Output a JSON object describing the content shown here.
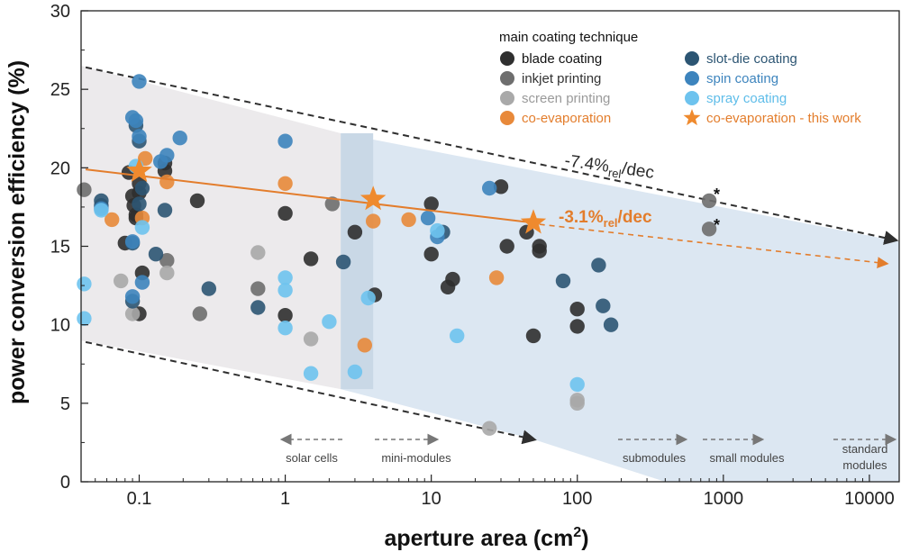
{
  "chart_data": {
    "type": "scatter",
    "title": "",
    "xlabel": "aperture area (cm",
    "xlabel_sup": "2",
    "xlabel_close": ")",
    "ylabel": "power conversion efficiency (%)",
    "xscale": "log",
    "xlim": [
      0.04,
      16000
    ],
    "ylim": [
      0,
      30
    ],
    "x_ticks": [
      0.1,
      1,
      10,
      100,
      1000,
      10000
    ],
    "x_tick_labels": [
      "0.1",
      "1",
      "10",
      "100",
      "1000",
      "10000"
    ],
    "y_ticks": [
      0,
      5,
      10,
      15,
      20,
      25,
      30
    ],
    "y_tick_labels": [
      "0",
      "5",
      "10",
      "15",
      "20",
      "25",
      "30"
    ],
    "grid": false,
    "legend": {
      "title": "main coating technique",
      "placement": "top-right",
      "entries": [
        {
          "key": "blade",
          "label": "blade coating",
          "marker": "circle"
        },
        {
          "key": "inkjet",
          "label": "inkjet printing",
          "marker": "circle"
        },
        {
          "key": "screen",
          "label": "screen printing",
          "marker": "circle"
        },
        {
          "key": "coevap",
          "label": "co-evaporation",
          "marker": "circle"
        },
        {
          "key": "slotdie",
          "label": "slot-die coating",
          "marker": "circle"
        },
        {
          "key": "spin",
          "label": "spin coating",
          "marker": "circle"
        },
        {
          "key": "spray",
          "label": "spray coating",
          "marker": "circle"
        },
        {
          "key": "thiswork",
          "label": "co-evaporation - this work",
          "marker": "star"
        }
      ]
    },
    "colors": {
      "blade": "#2f2f2f",
      "inkjet": "#6e6e6e",
      "screen": "#a9a9a9",
      "coevap": "#e8893a",
      "slotdie": "#2c5573",
      "spin": "#3d84bd",
      "spray": "#6ec3ee",
      "thiswork": "#ef8a2e",
      "envelope": "#2f2f2f",
      "trend": "#e37d2c"
    },
    "series": [
      {
        "key": "blade",
        "points": [
          [
            0.085,
            19.7
          ],
          [
            0.09,
            18.2
          ],
          [
            0.092,
            17.6
          ],
          [
            0.095,
            17.0
          ],
          [
            0.1,
            19.0
          ],
          [
            0.1,
            18.4
          ],
          [
            0.105,
            13.3
          ],
          [
            0.1,
            10.7
          ],
          [
            0.08,
            15.2
          ],
          [
            0.095,
            16.8
          ],
          [
            0.15,
            19.8
          ],
          [
            0.15,
            20.3
          ],
          [
            0.25,
            17.9
          ],
          [
            1.0,
            17.1
          ],
          [
            1.0,
            10.6
          ],
          [
            1.5,
            14.2
          ],
          [
            3.0,
            15.9
          ],
          [
            4.1,
            11.9
          ],
          [
            10.0,
            17.7
          ],
          [
            10.0,
            14.5
          ],
          [
            13.0,
            12.4
          ],
          [
            14.0,
            12.9
          ],
          [
            30.0,
            18.8
          ],
          [
            33.0,
            15.0
          ],
          [
            45.0,
            15.9
          ],
          [
            50.0,
            9.3
          ],
          [
            55.0,
            14.7
          ],
          [
            55.0,
            15.0
          ],
          [
            100.0,
            11.0
          ],
          [
            100.0,
            9.9
          ]
        ]
      },
      {
        "key": "inkjet",
        "points": [
          [
            0.042,
            18.6
          ],
          [
            0.155,
            14.1
          ],
          [
            0.26,
            10.7
          ],
          [
            0.65,
            12.3
          ],
          [
            2.1,
            17.7
          ],
          [
            800.0,
            17.9
          ],
          [
            800.0,
            16.1
          ]
        ]
      },
      {
        "key": "screen",
        "points": [
          [
            0.075,
            12.8
          ],
          [
            0.09,
            10.7
          ],
          [
            0.155,
            13.3
          ],
          [
            0.65,
            14.6
          ],
          [
            1.5,
            9.1
          ],
          [
            25.0,
            3.4
          ],
          [
            100.0,
            5.2
          ],
          [
            100.0,
            5.0
          ]
        ]
      },
      {
        "key": "coevap",
        "points": [
          [
            0.065,
            16.7
          ],
          [
            0.105,
            16.8
          ],
          [
            0.11,
            20.6
          ],
          [
            0.155,
            19.1
          ],
          [
            1.0,
            19.0
          ],
          [
            3.5,
            8.7
          ],
          [
            4.0,
            16.6
          ],
          [
            7.0,
            16.7
          ],
          [
            28.0,
            13.0
          ]
        ]
      },
      {
        "key": "slotdie",
        "points": [
          [
            0.055,
            17.9
          ],
          [
            0.055,
            17.6
          ],
          [
            0.09,
            15.2
          ],
          [
            0.09,
            11.5
          ],
          [
            0.095,
            22.7
          ],
          [
            0.1,
            21.7
          ],
          [
            0.105,
            18.7
          ],
          [
            0.1,
            17.7
          ],
          [
            0.13,
            14.5
          ],
          [
            0.15,
            17.3
          ],
          [
            0.3,
            12.3
          ],
          [
            0.65,
            11.1
          ],
          [
            2.5,
            14.0
          ],
          [
            12.0,
            15.9
          ],
          [
            80.0,
            12.8
          ],
          [
            140.0,
            13.8
          ],
          [
            150.0,
            11.2
          ],
          [
            170.0,
            10.0
          ]
        ]
      },
      {
        "key": "spin",
        "points": [
          [
            0.055,
            17.4
          ],
          [
            0.09,
            23.2
          ],
          [
            0.09,
            15.3
          ],
          [
            0.09,
            11.8
          ],
          [
            0.095,
            23.0
          ],
          [
            0.1,
            25.5
          ],
          [
            0.1,
            22.0
          ],
          [
            0.105,
            12.7
          ],
          [
            0.14,
            20.4
          ],
          [
            0.155,
            20.8
          ],
          [
            0.19,
            21.9
          ],
          [
            1.0,
            21.7
          ],
          [
            9.5,
            16.8
          ],
          [
            11.0,
            15.6
          ],
          [
            25.0,
            18.7
          ]
        ]
      },
      {
        "key": "spray",
        "points": [
          [
            0.042,
            12.6
          ],
          [
            0.042,
            10.4
          ],
          [
            0.055,
            17.3
          ],
          [
            0.095,
            20.1
          ],
          [
            0.105,
            16.2
          ],
          [
            1.0,
            13.0
          ],
          [
            1.0,
            12.2
          ],
          [
            1.0,
            9.8
          ],
          [
            1.5,
            6.9
          ],
          [
            2.0,
            10.2
          ],
          [
            3.0,
            7.0
          ],
          [
            3.7,
            11.7
          ],
          [
            11.0,
            16.0
          ],
          [
            15.0,
            9.3
          ],
          [
            100.0,
            6.2
          ]
        ]
      },
      {
        "key": "thiswork",
        "points": [
          [
            0.1,
            19.8
          ],
          [
            4.0,
            18.0
          ],
          [
            50.0,
            16.5
          ]
        ]
      }
    ],
    "annotations": [
      {
        "text": "-7.4%",
        "sub": "rel",
        "tail": "/dec"
      },
      {
        "text": "-3.1%",
        "sub": "rel",
        "tail": "/dec"
      },
      {
        "text": "*"
      },
      {
        "text": "*"
      }
    ],
    "categories_bar": [
      {
        "label": "solar cells"
      },
      {
        "label": "mini-modules"
      },
      {
        "label": "submodules"
      },
      {
        "label": "small modules"
      },
      {
        "label": "standard",
        "label2": "modules"
      }
    ]
  }
}
